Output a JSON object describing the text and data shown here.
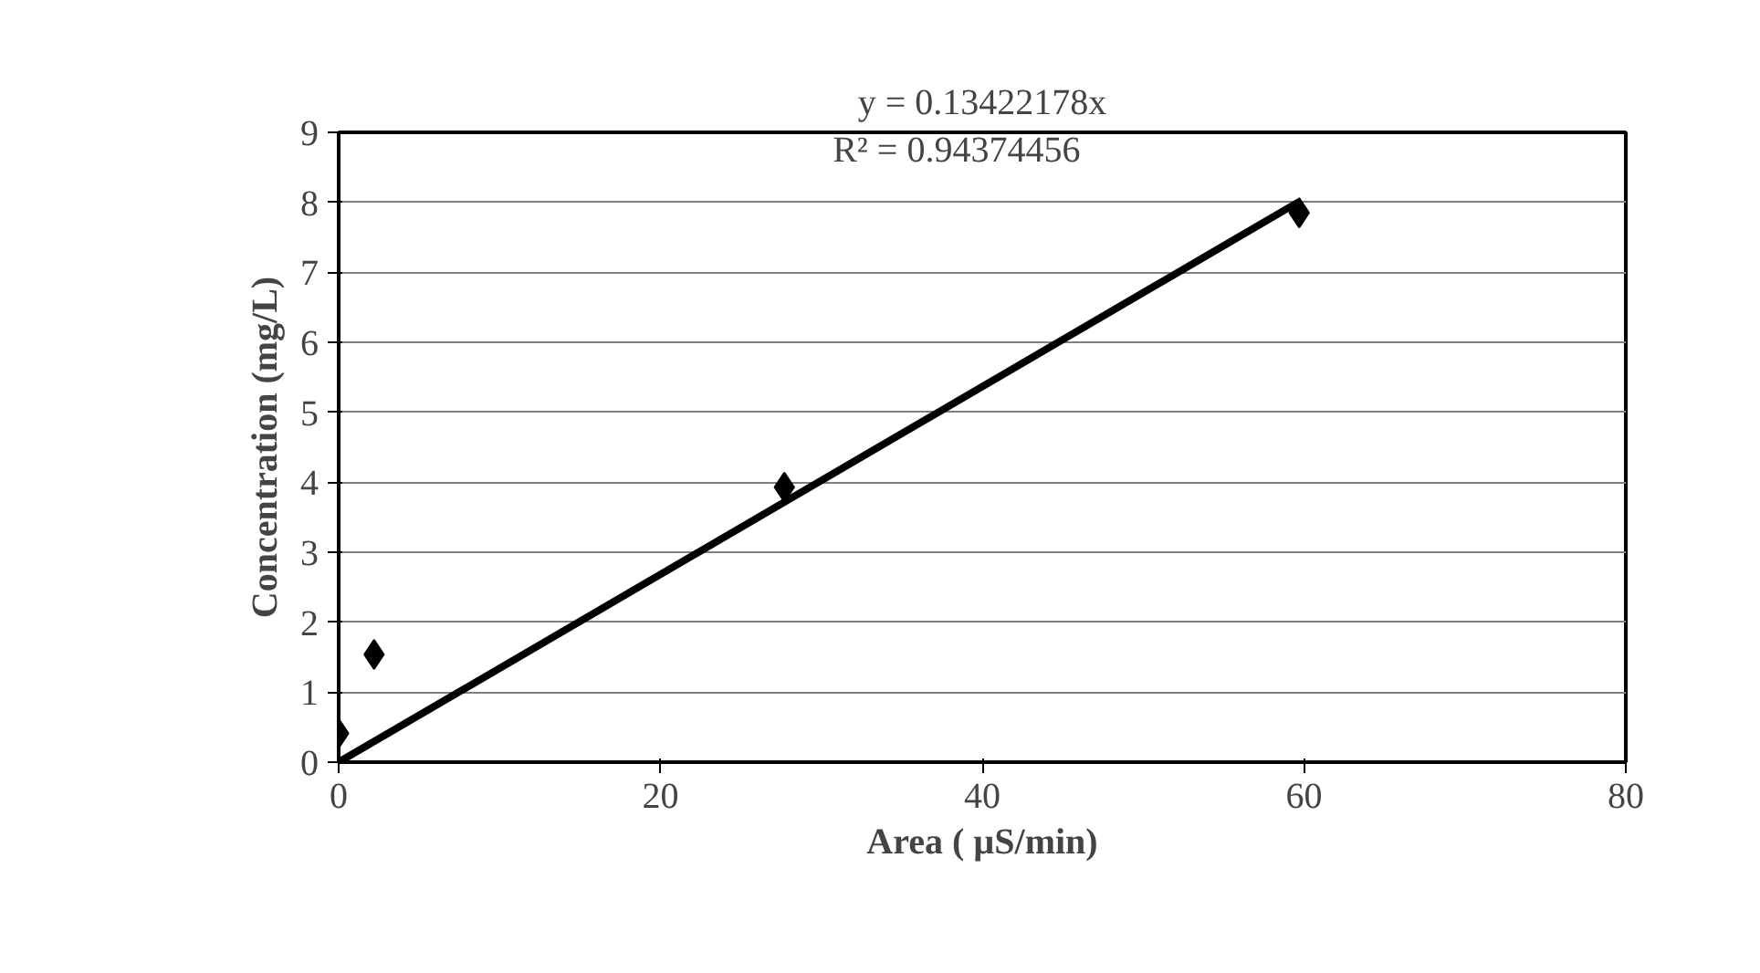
{
  "chart_data": {
    "type": "scatter",
    "xlabel": "Area ( µS/min)",
    "ylabel": "Concentration (mg/L)",
    "x": [
      0,
      2.2,
      27.7,
      59.7
    ],
    "series": [
      {
        "color": "#000000",
        "values": [
          0.41,
          1.54,
          3.93,
          7.85
        ]
      },
      {
        "type": "line",
        "color": "#000000",
        "x": [
          0,
          59.7
        ],
        "values": [
          0,
          8.01
        ],
        "marker": "none"
      }
    ],
    "annotations": [
      "y = 0.13422178x",
      "R² = 0.94374456"
    ],
    "xlim": [
      0,
      80
    ],
    "xticks": [
      0,
      20,
      40,
      60,
      80
    ],
    "ylim": [
      0,
      9
    ],
    "yticks": [
      0,
      1,
      2,
      3,
      4,
      5,
      6,
      7,
      8,
      9
    ],
    "grid": "y",
    "marker": "diamond",
    "line_style": "solid"
  }
}
